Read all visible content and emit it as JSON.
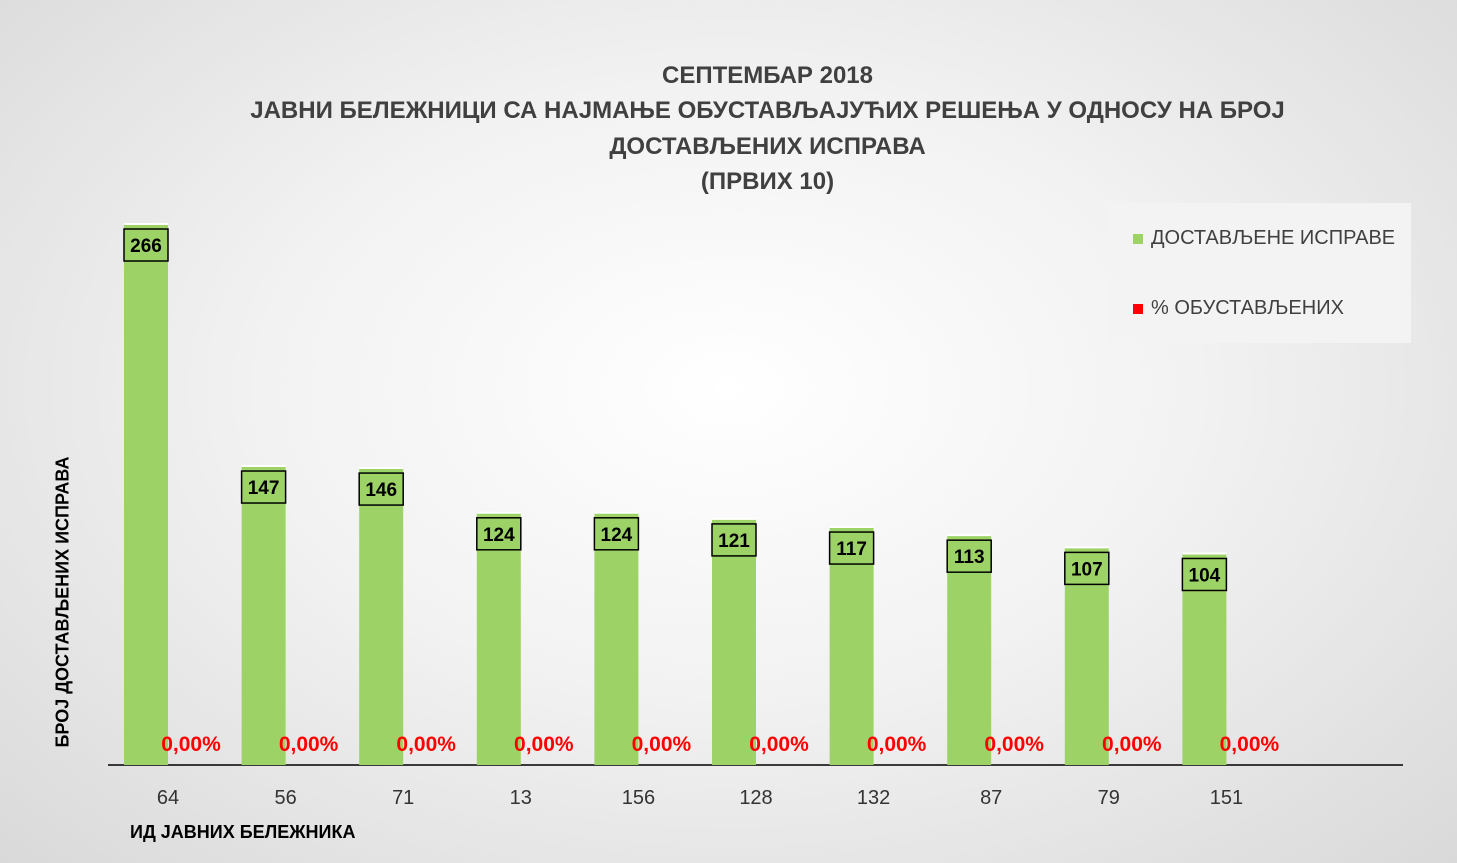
{
  "title_lines": [
    "СЕПТЕМБАР 2018",
    "ЈАВНИ БЕЛЕЖНИЦИ СА НАЈМАЊЕ ОБУСТАВЉАЈУЋИХ РЕШЕЊА У ОДНОСУ НА БРОЈ",
    "ДОСТАВЉЕНИХ ИСПРАВА",
    "(ПРВИХ 10)"
  ],
  "legend": {
    "series1_label": "ДОСТАВЉЕНЕ ИСПРАВЕ",
    "series2_label": "% ОБУСТАВЉЕНИХ"
  },
  "colors": {
    "bar": "#9dd366",
    "percent": "#ff0000",
    "label_box": "#9dd366"
  },
  "chart_data": {
    "type": "bar",
    "title": "СЕПТЕМБАР 2018 ЈАВНИ БЕЛЕЖНИЦИ СА НАЈМАЊЕ ОБУСТАВЉАЈУЋИХ РЕШЕЊА У ОДНОСУ НА БРОЈ ДОСТАВЉЕНИХ ИСПРАВА (ПРВИХ 10)",
    "xlabel": "ИД ЈАВНИХ БЕЛЕЖНИКА",
    "ylabel": "БРОЈ ДОСТАВЉЕНИХ ИСПРАВА",
    "categories": [
      "64",
      "56",
      "71",
      "13",
      "156",
      "128",
      "132",
      "87",
      "79",
      "151"
    ],
    "ylim": [
      0,
      266
    ],
    "grid": false,
    "legend_position": "top-right",
    "series": [
      {
        "name": "ДОСТАВЉЕНЕ ИСПРАВЕ",
        "values": [
          266,
          147,
          146,
          124,
          124,
          121,
          117,
          113,
          107,
          104
        ]
      },
      {
        "name": "% ОБУСТАВЉЕНИХ",
        "values": [
          0,
          0,
          0,
          0,
          0,
          0,
          0,
          0,
          0,
          0
        ],
        "labels": [
          "0,00%",
          "0,00%",
          "0,00%",
          "0,00%",
          "0,00%",
          "0,00%",
          "0,00%",
          "0,00%",
          "0,00%",
          "0,00%"
        ]
      }
    ]
  }
}
